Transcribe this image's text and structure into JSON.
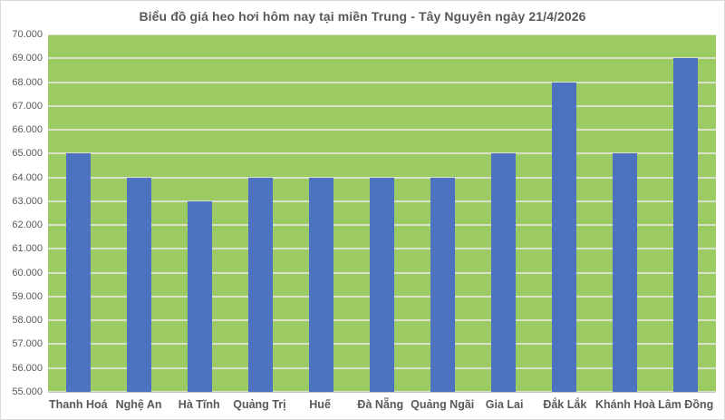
{
  "chart_data": {
    "type": "bar",
    "title": "Biểu đồ giá heo hơi hôm nay tại miền Trung - Tây Nguyên ngày 21/4/2026",
    "categories": [
      "Thanh Hoá",
      "Nghệ An",
      "Hà Tĩnh",
      "Quảng Trị",
      "Huế",
      "Đà Nẵng",
      "Quảng Ngãi",
      "Gia Lai",
      "Đắk Lắk",
      "Khánh Hoà",
      "Lâm Đồng"
    ],
    "values": [
      65000,
      64000,
      63000,
      64000,
      64000,
      64000,
      64000,
      65000,
      68000,
      65000,
      69000
    ],
    "xlabel": "",
    "ylabel": "",
    "ylim": [
      55000,
      70000
    ],
    "ytick_step": 1000,
    "ytick_labels": [
      "55.000",
      "56.000",
      "57.000",
      "58.000",
      "59.000",
      "60.000",
      "61.000",
      "62.000",
      "63.000",
      "64.000",
      "65.000",
      "66.000",
      "67.000",
      "68.000",
      "69.000",
      "70.000"
    ],
    "grid": "horizontal",
    "legend": false,
    "colors": {
      "bar": "#4D72BF",
      "plot_background": "#9CCB63",
      "gridline": "#D8E1CB",
      "text": "#595959",
      "axis_line": "#C3C9BC",
      "chart_border": "#D9D9D9"
    }
  }
}
